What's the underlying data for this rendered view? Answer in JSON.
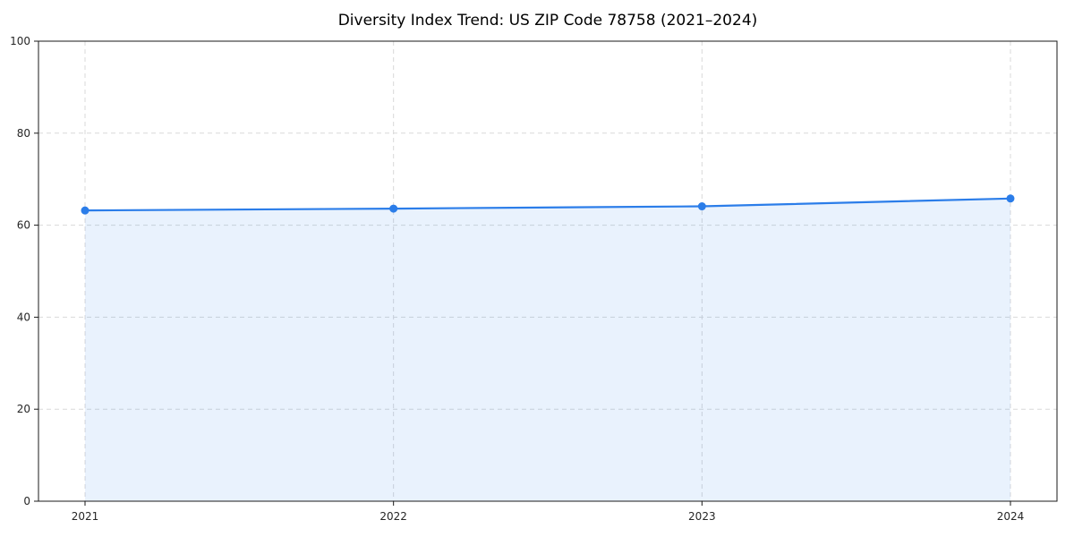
{
  "chart_data": {
    "type": "area",
    "title": "Diversity Index Trend: US ZIP Code 78758 (2021–2024)",
    "x": [
      "2021",
      "2022",
      "2023",
      "2024"
    ],
    "values": [
      63.2,
      63.6,
      64.1,
      65.8
    ],
    "ylim": [
      0,
      100
    ],
    "yticks": [
      0,
      20,
      40,
      60,
      80,
      100
    ],
    "xlabel": "",
    "ylabel": "",
    "grid": "dashed",
    "legend": "none",
    "line_color": "#2b7de9",
    "fill_opacity": 0.1,
    "marker": "circle",
    "grid_color": "#d9d9d9",
    "axis_color": "#1a1a1a",
    "text_color": "#262626",
    "background": "#ffffff"
  }
}
